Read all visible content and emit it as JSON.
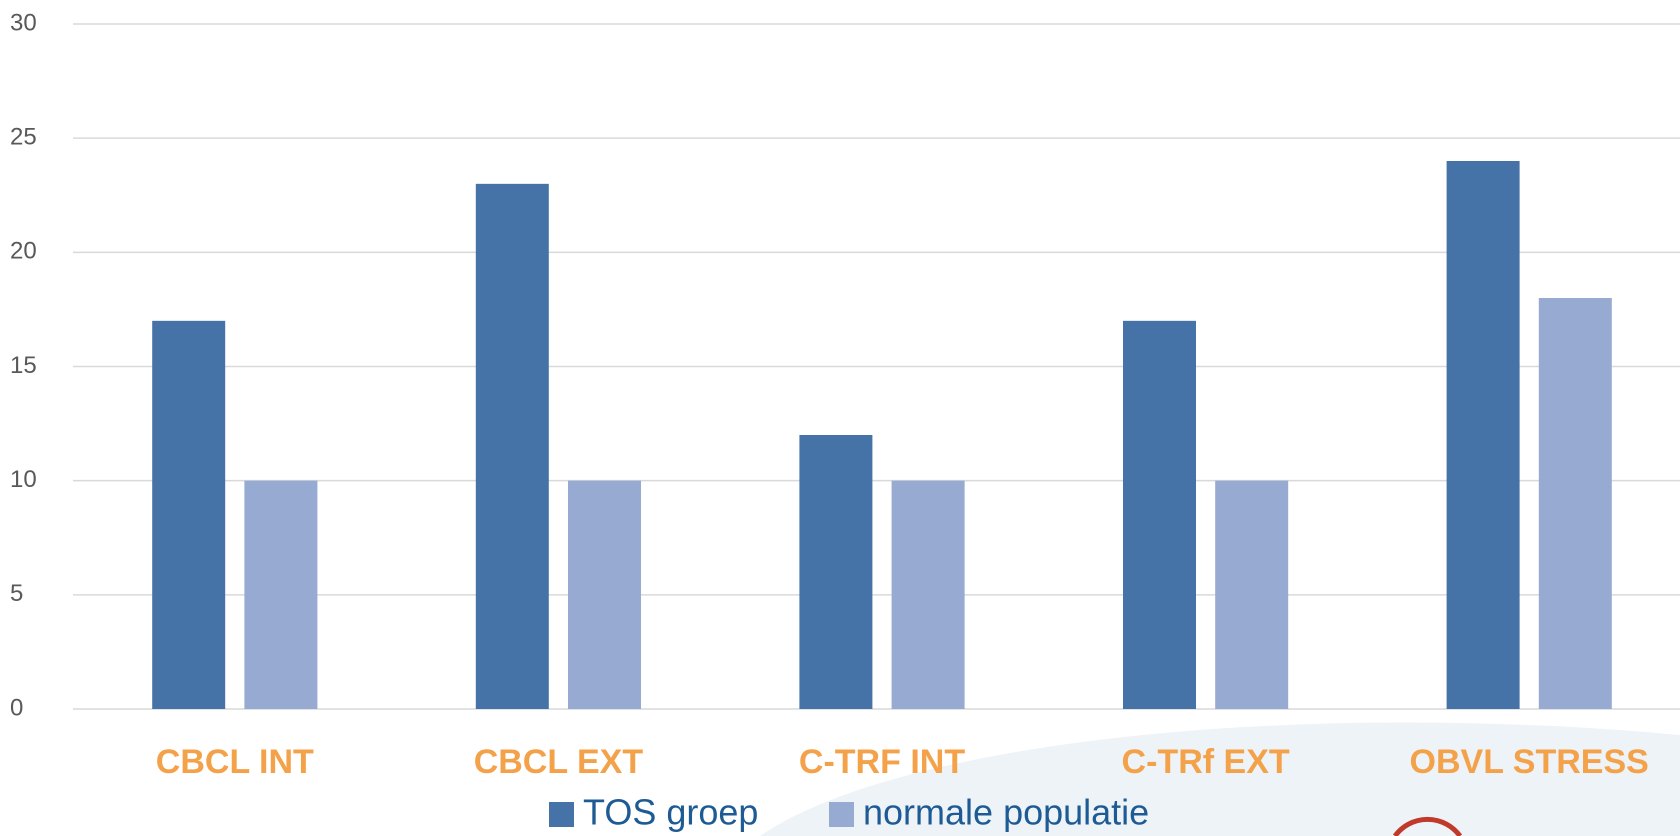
{
  "chart_data": {
    "type": "bar",
    "categories": [
      "CBCL INT",
      "CBCL EXT",
      "C-TRF INT",
      "C-TRf EXT",
      "OBVL STRESS"
    ],
    "series": [
      {
        "name": "TOS groep",
        "color": "#4673a7",
        "values": [
          17,
          23,
          12,
          17,
          24
        ]
      },
      {
        "name": "normale populatie",
        "color": "#96aad2",
        "values": [
          10,
          10,
          10,
          10,
          18
        ]
      }
    ],
    "ylim": [
      0,
      30
    ],
    "yticks": [
      0,
      5,
      10,
      15,
      20,
      25,
      30
    ],
    "grid": true,
    "legend": "bottom"
  }
}
